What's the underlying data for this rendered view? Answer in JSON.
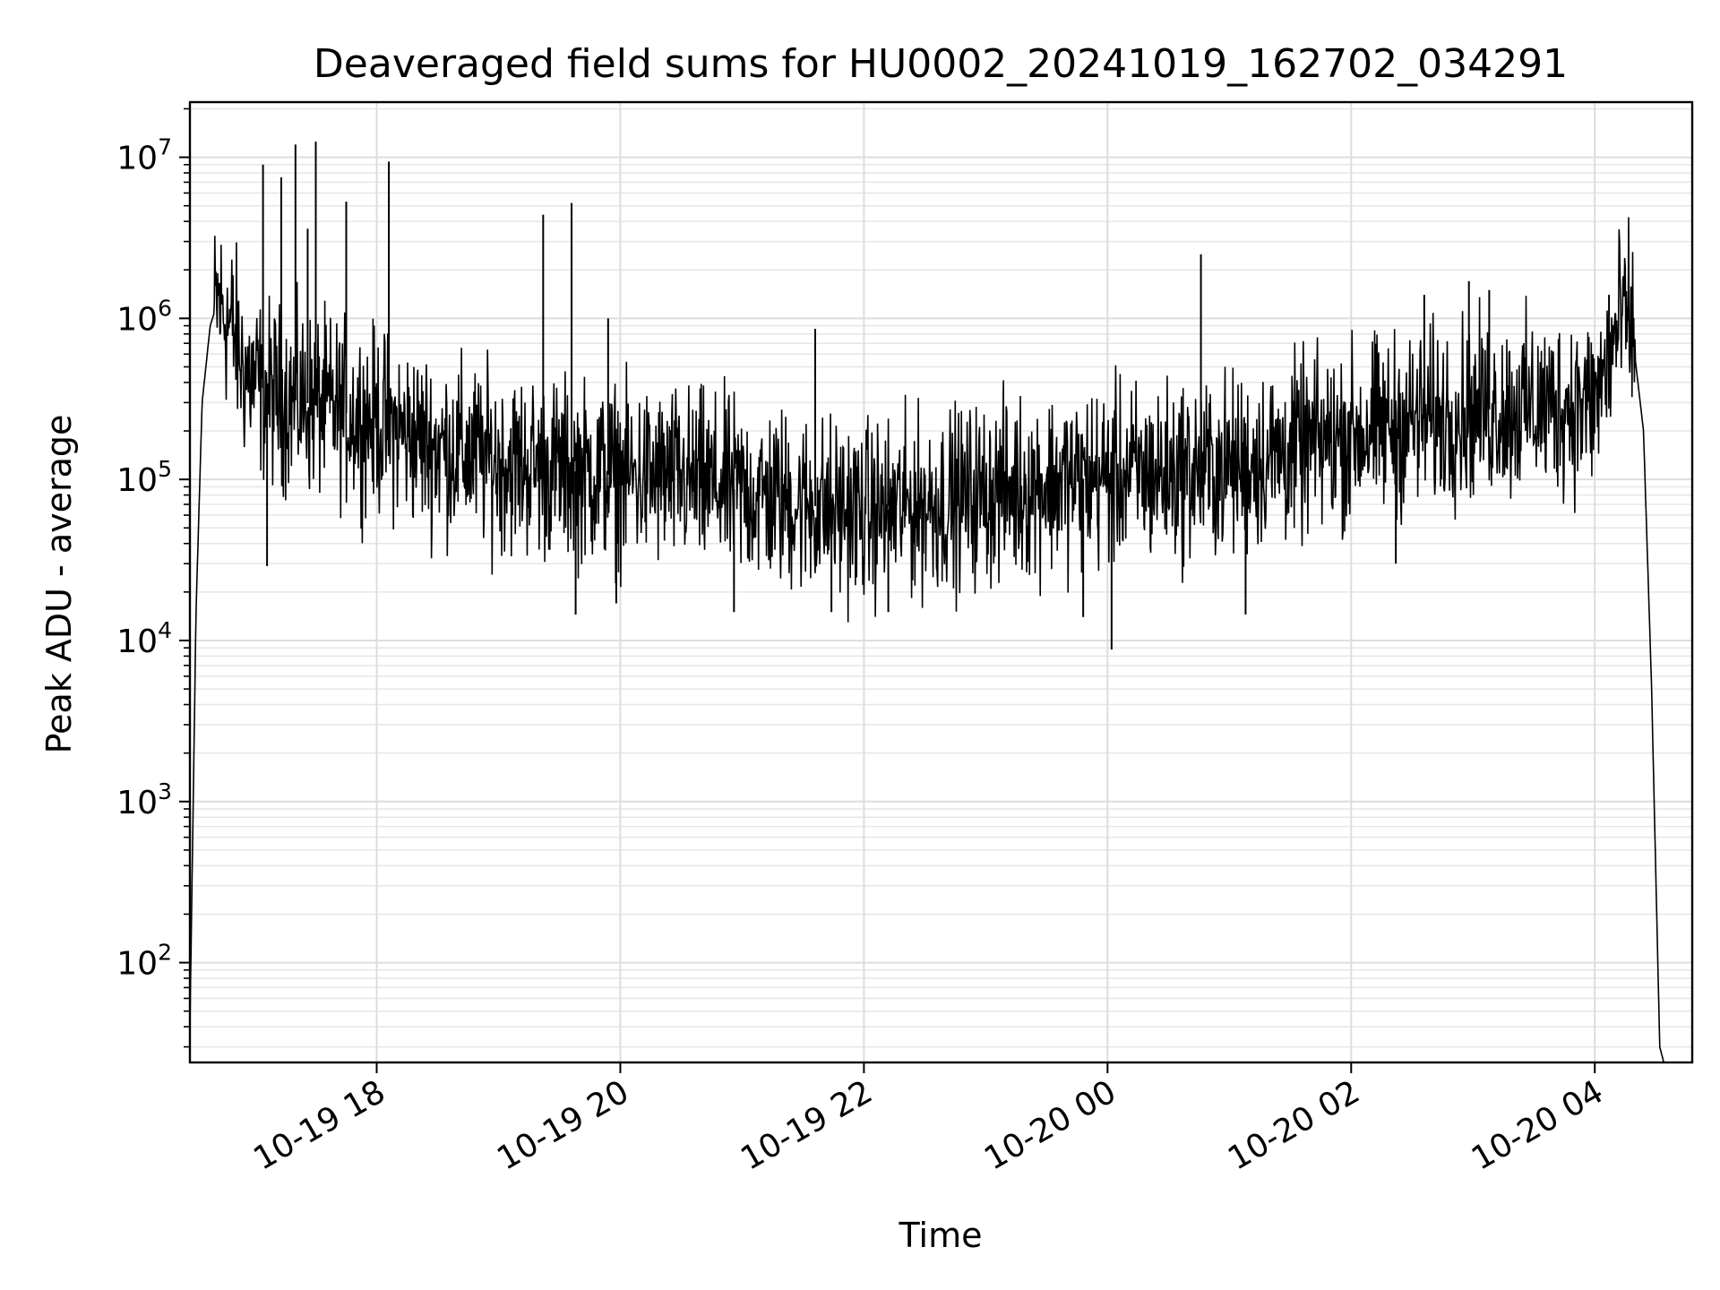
{
  "chart_data": {
    "type": "line",
    "title": "Deaveraged field sums for HU0002_20241019_162702_034291",
    "xlabel": "Time",
    "ylabel": "Peak ADU - average",
    "yscale": "log",
    "ylim": [
      24,
      22000000
    ],
    "xlim": [
      "2024-10-19 16:28",
      "2024-10-20 04:48"
    ],
    "grid": true,
    "line_color": "#000000",
    "x_ticks": [
      {
        "value": "2024-10-19 18:00",
        "label": "10-19 18"
      },
      {
        "value": "2024-10-19 20:00",
        "label": "10-19 20"
      },
      {
        "value": "2024-10-19 22:00",
        "label": "10-19 22"
      },
      {
        "value": "2024-10-20 00:00",
        "label": "10-20 00"
      },
      {
        "value": "2024-10-20 02:00",
        "label": "10-20 02"
      },
      {
        "value": "2024-10-20 04:00",
        "label": "10-20 04"
      }
    ],
    "y_ticks": [
      {
        "value": 100,
        "base": "10",
        "exp": "2"
      },
      {
        "value": 1000,
        "base": "10",
        "exp": "3"
      },
      {
        "value": 10000,
        "base": "10",
        "exp": "4"
      },
      {
        "value": 100000,
        "base": "10",
        "exp": "5"
      },
      {
        "value": 1000000,
        "base": "10",
        "exp": "6"
      },
      {
        "value": 10000000,
        "base": "10",
        "exp": "7"
      }
    ],
    "series": [
      {
        "x": [
          "2024-10-19 16:28",
          "2024-10-19 16:31",
          "2024-10-19 16:34",
          "2024-10-19 16:38",
          "2024-10-19 16:42",
          "2024-10-19 16:46",
          "2024-10-19 16:50",
          "2024-10-19 16:54",
          "2024-10-19 17:00",
          "2024-10-19 17:10",
          "2024-10-19 17:30",
          "2024-10-19 18:00",
          "2024-10-19 18:30",
          "2024-10-19 19:00",
          "2024-10-19 19:30",
          "2024-10-19 20:00",
          "2024-10-19 20:30",
          "2024-10-19 21:00",
          "2024-10-19 21:30",
          "2024-10-19 22:00",
          "2024-10-19 22:30",
          "2024-10-19 23:00",
          "2024-10-19 23:30",
          "2024-10-20 00:00",
          "2024-10-20 00:30",
          "2024-10-20 01:00",
          "2024-10-20 01:30",
          "2024-10-20 02:00",
          "2024-10-20 02:30",
          "2024-10-20 03:00",
          "2024-10-20 03:30",
          "2024-10-20 04:00",
          "2024-10-20 04:08",
          "2024-10-20 04:13",
          "2024-10-20 04:18",
          "2024-10-20 04:24",
          "2024-10-20 04:28",
          "2024-10-20 04:32",
          "2024-10-20 04:34"
        ],
        "y": [
          40,
          15000,
          300000,
          900000,
          1300000,
          1000000,
          800000,
          500000,
          400000,
          330000,
          290000,
          230000,
          160000,
          130000,
          115000,
          105000,
          100000,
          85000,
          70000,
          62000,
          70000,
          82000,
          95000,
          105000,
          110000,
          120000,
          150000,
          190000,
          230000,
          270000,
          280000,
          300000,
          600000,
          1000000,
          900000,
          200000,
          5000,
          30,
          24
        ]
      }
    ],
    "spikes": [
      {
        "x": "2024-10-19 17:04",
        "y": 9000000
      },
      {
        "x": "2024-10-19 17:13",
        "y": 7500000
      },
      {
        "x": "2024-10-19 17:20",
        "y": 12000000
      },
      {
        "x": "2024-10-19 17:30",
        "y": 12500000
      },
      {
        "x": "2024-10-19 17:26",
        "y": 3600000
      },
      {
        "x": "2024-10-19 17:45",
        "y": 5300000
      },
      {
        "x": "2024-10-19 18:06",
        "y": 9400000
      },
      {
        "x": "2024-10-19 19:22",
        "y": 4400000
      },
      {
        "x": "2024-10-19 19:36",
        "y": 5200000
      },
      {
        "x": "2024-10-19 19:54",
        "y": 1000000
      },
      {
        "x": "2024-10-19 21:36",
        "y": 860000
      },
      {
        "x": "2024-10-20 00:46",
        "y": 2500000
      },
      {
        "x": "2024-10-20 02:36",
        "y": 1400000
      },
      {
        "x": "2024-10-20 02:58",
        "y": 1700000
      },
      {
        "x": "2024-10-20 03:08",
        "y": 1500000
      },
      {
        "x": "2024-10-20 04:07",
        "y": 1400000
      }
    ],
    "dips": [
      {
        "x": "2024-10-19 17:06",
        "y": 29000
      },
      {
        "x": "2024-10-19 19:38",
        "y": 14500
      },
      {
        "x": "2024-10-19 19:58",
        "y": 17000
      },
      {
        "x": "2024-10-19 20:56",
        "y": 15000
      },
      {
        "x": "2024-10-19 21:44",
        "y": 15000
      },
      {
        "x": "2024-10-19 22:12",
        "y": 15000
      },
      {
        "x": "2024-10-19 23:48",
        "y": 14000
      },
      {
        "x": "2024-10-20 00:02",
        "y": 8800
      },
      {
        "x": "2024-10-20 01:08",
        "y": 14500
      },
      {
        "x": "2024-10-20 02:22",
        "y": 30000
      }
    ]
  }
}
